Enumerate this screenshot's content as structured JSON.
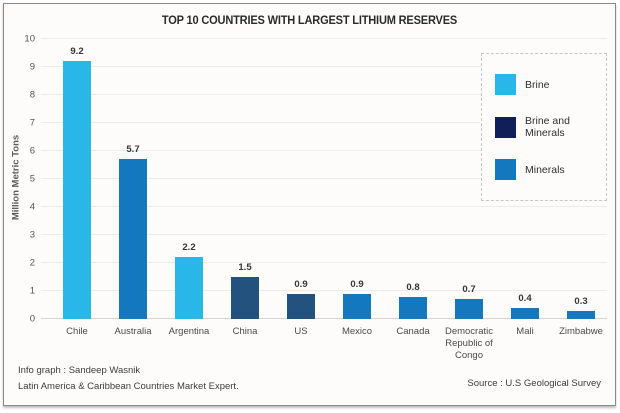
{
  "title": "TOP 10 COUNTRIES WITH LARGEST LITHIUM RESERVES",
  "chart_data": {
    "type": "bar",
    "title": "TOP 10 COUNTRIES WITH LARGEST LITHIUM RESERVES",
    "xlabel": "",
    "ylabel": "Million Metric Tons",
    "ylim": [
      0,
      10
    ],
    "ytick_step": 1,
    "yticks": [
      0,
      1,
      2,
      3,
      4,
      5,
      6,
      7,
      8,
      9,
      10
    ],
    "grid": "horizontal",
    "legend_position": "top-right",
    "categories": [
      "Chile",
      "Australia",
      "Argentina",
      "China",
      "US",
      "Mexico",
      "Canada",
      "Democratic Republic of Congo",
      "Mali",
      "Zimbabwe"
    ],
    "values": [
      9.2,
      5.7,
      2.2,
      1.5,
      0.9,
      0.9,
      0.8,
      0.7,
      0.4,
      0.3
    ],
    "bar_series": [
      "Brine",
      "Minerals",
      "Brine",
      "Brine and Minerals",
      "Brine and Minerals",
      "Minerals",
      "Minerals",
      "Minerals",
      "Minerals",
      "Minerals"
    ],
    "series_bar_colors": {
      "Brine": "#29b6e8",
      "Brine and Minerals": "#24527e",
      "Minerals": "#1478be"
    },
    "legend": [
      {
        "label": "Brine",
        "color": "#29b6e8"
      },
      {
        "label": "Brine and Minerals",
        "color": "#101f57"
      },
      {
        "label": "Minerals",
        "color": "#1478be"
      }
    ]
  },
  "footer": {
    "left_line1": "Info graph : Sandeep Wasnik",
    "left_line2": "Latin America & Caribbean Countries Market Expert.",
    "source": "Source : U.S Geological Survey"
  }
}
